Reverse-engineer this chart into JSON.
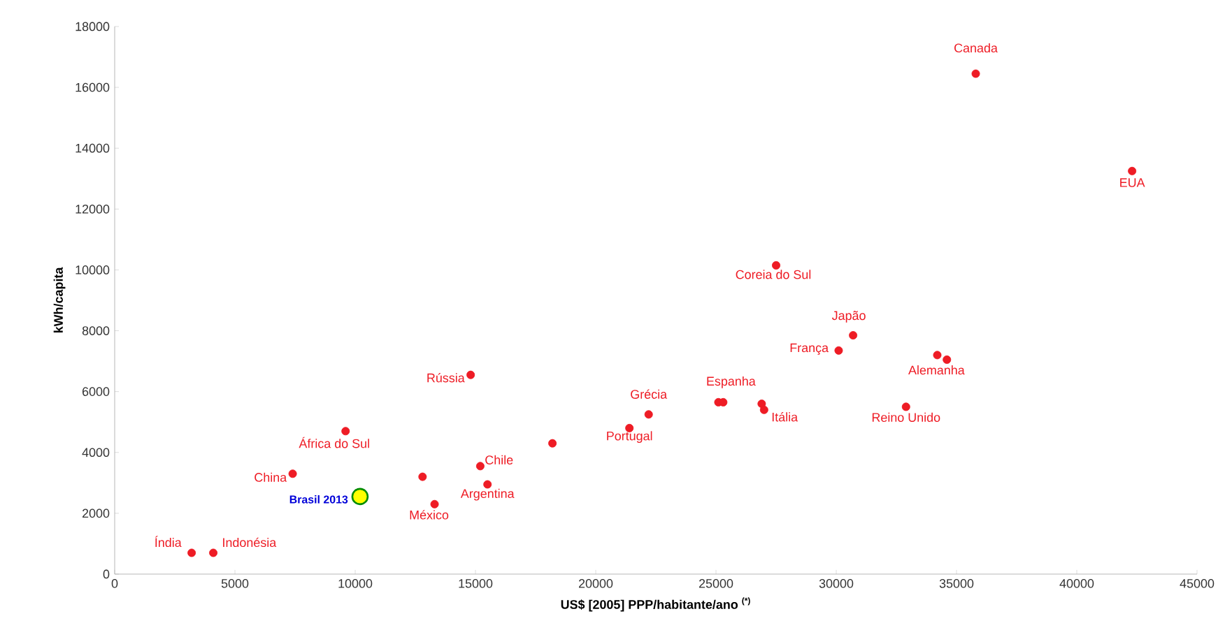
{
  "chart_data": {
    "type": "scatter",
    "xlabel": "US$ [2005] PPP/habitante/ano $^{(*)}$",
    "ylabel": "kWh/capita",
    "xlim": [
      0,
      45000
    ],
    "ylim": [
      0,
      18000
    ],
    "xticks": [
      0,
      5000,
      10000,
      15000,
      20000,
      25000,
      30000,
      35000,
      40000,
      45000
    ],
    "yticks": [
      0,
      2000,
      4000,
      6000,
      8000,
      10000,
      12000,
      14000,
      16000,
      18000
    ],
    "grid": false,
    "legend": false,
    "marker": "circle",
    "series": [
      {
        "color": "#ee1c25",
        "x": [
          3200,
          4100,
          7400,
          9600,
          12800,
          13300,
          14800,
          15200,
          15500,
          18200,
          21400,
          22200,
          25100,
          25300,
          26900,
          27000,
          27500,
          30100,
          30700,
          32900,
          34200,
          34600,
          35800,
          42300
        ],
        "values": [
          700,
          700,
          3300,
          4700,
          3200,
          2300,
          6550,
          3550,
          2950,
          4300,
          4800,
          5250,
          5650,
          5650,
          5600,
          5400,
          10150,
          7350,
          7850,
          5500,
          7200,
          7050,
          16450,
          13250
        ]
      },
      {
        "name": "Brasil 2013",
        "color": "#ffff00",
        "x": [
          10200
        ],
        "values": [
          2550
        ]
      }
    ],
    "annotations": [
      {
        "text": "Canada",
        "x": 35800,
        "y": 16450
      },
      {
        "text": "EUA",
        "x": 42300,
        "y": 13250
      },
      {
        "text": "Coreia do Sul",
        "x": 27500,
        "y": 10150
      },
      {
        "text": "Japão",
        "x": 30700,
        "y": 7850
      },
      {
        "text": "França",
        "x": 30100,
        "y": 7350
      },
      {
        "text": "Espanha",
        "x": 26900,
        "y": 5600
      },
      {
        "text": "Alemanha",
        "x": 34400,
        "y": 7100
      },
      {
        "text": "Grécia",
        "x": 22200,
        "y": 5250
      },
      {
        "text": "Portugal",
        "x": 21400,
        "y": 4800
      },
      {
        "text": "Itália",
        "x": 27000,
        "y": 5400
      },
      {
        "text": "Reino Unido",
        "x": 32900,
        "y": 5500
      },
      {
        "text": "Rússia",
        "x": 14800,
        "y": 6550
      },
      {
        "text": "África do Sul",
        "x": 9600,
        "y": 4700
      },
      {
        "text": "Chile",
        "x": 15200,
        "y": 3550
      },
      {
        "text": "Argentina",
        "x": 15500,
        "y": 2950
      },
      {
        "text": "China",
        "x": 7400,
        "y": 3300
      },
      {
        "text": "México",
        "x": 13300,
        "y": 2300
      },
      {
        "text": "Índia",
        "x": 3200,
        "y": 700
      },
      {
        "text": "Indonésia",
        "x": 4100,
        "y": 700
      }
    ]
  }
}
